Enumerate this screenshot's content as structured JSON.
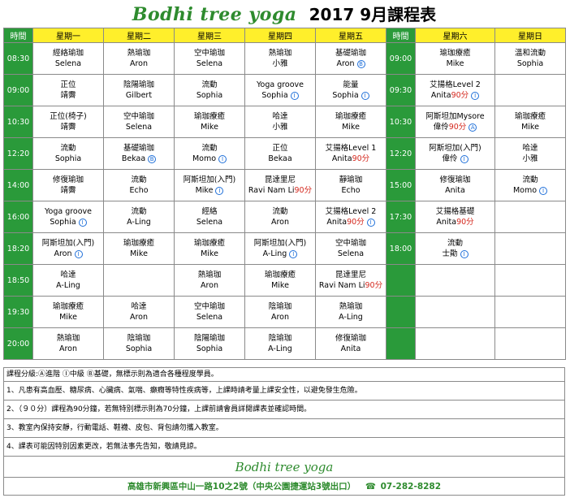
{
  "header": {
    "brand": "Bodhi tree yoga",
    "title": "2017  9月課程表"
  },
  "columns": [
    "時間",
    "星期一",
    "星期二",
    "星期三",
    "星期四",
    "星期五",
    "時間",
    "星期六",
    "星期日"
  ],
  "weekday_rows": [
    {
      "time": "08:30",
      "cells": [
        {
          "cls": "經絡瑜珈",
          "tch": "Selena"
        },
        {
          "cls": "熱瑜珈",
          "tch": "Aron"
        },
        {
          "cls": "空中瑜珈",
          "tch": "Selena"
        },
        {
          "cls": "熱瑜珈",
          "tch": "小雅"
        },
        {
          "cls": "基礎瑜珈",
          "tch": "Aron",
          "mark": "B"
        }
      ]
    },
    {
      "time": "09:00",
      "cells": [
        {
          "cls": "正位",
          "tch": "靖霽"
        },
        {
          "cls": "陰陽瑜珈",
          "tch": "Gilbert"
        },
        {
          "cls": "流動",
          "tch": "Sophia"
        },
        {
          "cls": "Yoga groove",
          "tch": "Sophia",
          "mark": "I"
        },
        {
          "cls": "能量",
          "tch": "Sophia",
          "mark": "I"
        }
      ]
    },
    {
      "time": "10:30",
      "cells": [
        {
          "cls": "正位(椅子)",
          "tch": "靖霽"
        },
        {
          "cls": "空中瑜珈",
          "tch": "Selena"
        },
        {
          "cls": "瑜珈療癒",
          "tch": "Mike"
        },
        {
          "cls": "哈達",
          "tch": "小雅"
        },
        {
          "cls": "瑜珈療癒",
          "tch": "Mike"
        }
      ]
    },
    {
      "time": "12:20",
      "cells": [
        {
          "cls": "流動",
          "tch": "Sophia"
        },
        {
          "cls": "基礎瑜珈",
          "tch": "Bekaa",
          "mark": "B"
        },
        {
          "cls": "流動",
          "tch": "Momo",
          "mark": "I"
        },
        {
          "cls": "正位",
          "tch": "Bekaa"
        },
        {
          "cls": "艾揚格Level 1",
          "tch": "Anita",
          "m90": "90分"
        }
      ]
    },
    {
      "time": "14:00",
      "cells": [
        {
          "cls": "修復瑜珈",
          "tch": "靖霽"
        },
        {
          "cls": "流動",
          "tch": "Echo"
        },
        {
          "cls": "阿斯坦加(入門)",
          "tch": "Mike",
          "mark": "I"
        },
        {
          "cls": "昆達里尼",
          "tch": "Ravi Nam Li",
          "m90": "90分"
        },
        {
          "cls": "靜瑜珈",
          "tch": "Echo"
        }
      ]
    },
    {
      "time": "16:00",
      "cells": [
        {
          "cls": "Yoga groove",
          "tch": "Sophia",
          "mark": "I"
        },
        {
          "cls": "流動",
          "tch": "A-Ling"
        },
        {
          "cls": "經絡",
          "tch": "Selena"
        },
        {
          "cls": "流動",
          "tch": "Aron"
        },
        {
          "cls": "艾揚格Level 2",
          "tch": "Anita",
          "m90": "90分",
          "mark": "I"
        }
      ]
    },
    {
      "time": "18:20",
      "cells": [
        {
          "cls": "阿斯坦加(入門)",
          "tch": "Aron",
          "mark": "I"
        },
        {
          "cls": "瑜珈療癒",
          "tch": "Mike"
        },
        {
          "cls": "瑜珈療癒",
          "tch": "Mike"
        },
        {
          "cls": "阿斯坦加(入門)",
          "tch": "A-Ling",
          "mark": "I"
        },
        {
          "cls": "空中瑜珈",
          "tch": "Selena"
        }
      ]
    },
    {
      "time": "18:50",
      "cells": [
        {
          "cls": "哈達",
          "tch": "A-Ling"
        },
        {
          "cls": "",
          "tch": ""
        },
        {
          "cls": "熱瑜珈",
          "tch": "Aron"
        },
        {
          "cls": "瑜珈療癒",
          "tch": "Mike"
        },
        {
          "cls": "昆達里尼",
          "tch": "Ravi Nam Li",
          "m90": "90分"
        }
      ]
    },
    {
      "time": "19:30",
      "cells": [
        {
          "cls": "瑜珈療癒",
          "tch": "Mike"
        },
        {
          "cls": "哈達",
          "tch": "Aron"
        },
        {
          "cls": "空中瑜珈",
          "tch": "Selena"
        },
        {
          "cls": "陰瑜珈",
          "tch": "Aron"
        },
        {
          "cls": "熱瑜珈",
          "tch": "A-Ling"
        }
      ]
    },
    {
      "time": "20:00",
      "cells": [
        {
          "cls": "熱瑜珈",
          "tch": "Aron"
        },
        {
          "cls": "陰瑜珈",
          "tch": "Sophia"
        },
        {
          "cls": "陰陽瑜珈",
          "tch": "Sophia"
        },
        {
          "cls": "陰瑜珈",
          "tch": "A-Ling"
        },
        {
          "cls": "修復瑜珈",
          "tch": "Anita"
        }
      ]
    }
  ],
  "weekend_rows": [
    {
      "time": "09:00",
      "sat": {
        "cls": "瑜珈療癒",
        "tch": "Mike"
      },
      "sun": {
        "cls": "溫和流動",
        "tch": "Sophia"
      }
    },
    {
      "time": "09:30",
      "sat": {
        "cls": "艾揚格Level 2",
        "tch": "Anita",
        "m90": "90分",
        "mark": "I"
      },
      "sun": {
        "cls": "",
        "tch": ""
      }
    },
    {
      "time": "10:30",
      "sat": {
        "cls": "阿斯坦加Mysore",
        "tch": "偉伶",
        "m90": "90分",
        "mark": "A"
      },
      "sun": {
        "cls": "瑜珈療癒",
        "tch": "Mike"
      }
    },
    {
      "time": "12:20",
      "sat": {
        "cls": "阿斯坦加(入門)",
        "tch": "偉伶",
        "mark": "I"
      },
      "sun": {
        "cls": "哈達",
        "tch": "小雅"
      }
    },
    {
      "time": "15:00",
      "sat": {
        "cls": "修復瑜珈",
        "tch": "Anita"
      },
      "sun": {
        "cls": "流動",
        "tch": "Momo",
        "mark": "I"
      }
    },
    {
      "time": "17:30",
      "sat": {
        "cls": "艾揚格基礎",
        "tch": "Anita",
        "m90": "90分"
      },
      "sun": {
        "cls": "",
        "tch": ""
      }
    },
    {
      "time": "18:00",
      "sat": {
        "cls": "流動",
        "tch": "士勛",
        "mark": "I"
      },
      "sun": {
        "cls": "",
        "tch": ""
      }
    },
    {
      "time": "",
      "sat": {
        "cls": "",
        "tch": ""
      },
      "sun": {
        "cls": "",
        "tch": ""
      }
    },
    {
      "time": "",
      "sat": {
        "cls": "",
        "tch": ""
      },
      "sun": {
        "cls": "",
        "tch": ""
      }
    },
    {
      "time": "",
      "sat": {
        "cls": "",
        "tch": ""
      },
      "sun": {
        "cls": "",
        "tch": ""
      }
    }
  ],
  "notes": {
    "legend": "課程分級:Ⓐ進階 Ⓘ中級 Ⓑ基礎，無標示則為適合各種程度學員。",
    "items": [
      "1、凡患有高血壓、糖尿病、心臟病、氣喘、癲癇等特性疾病等，上課時請考量上課安全性，以避免發生危險。",
      "2、（９０分）課程為90分鐘，若無特別標示則為70分鐘，上課前請會員詳閱課表並確認時間。",
      "3、教室內保持安靜，行動電話、鞋襪、皮包、背包請勿攜入教室。",
      "4、課表可能因特別因素更改，若無法事先告知，敬請見諒。"
    ]
  },
  "footer": {
    "brand": "Bodhi tree yoga",
    "address": "高雄市新興區中山一路10之2號（中央公園捷運站3號出口）",
    "phone": "07-282-8282",
    "phone_icon": "phone-icon"
  },
  "colors": {
    "green": "#2a9a3a",
    "yellow": "#ffef2b",
    "level_mark": "#1e6fd9",
    "ninety": "#d4281e"
  }
}
